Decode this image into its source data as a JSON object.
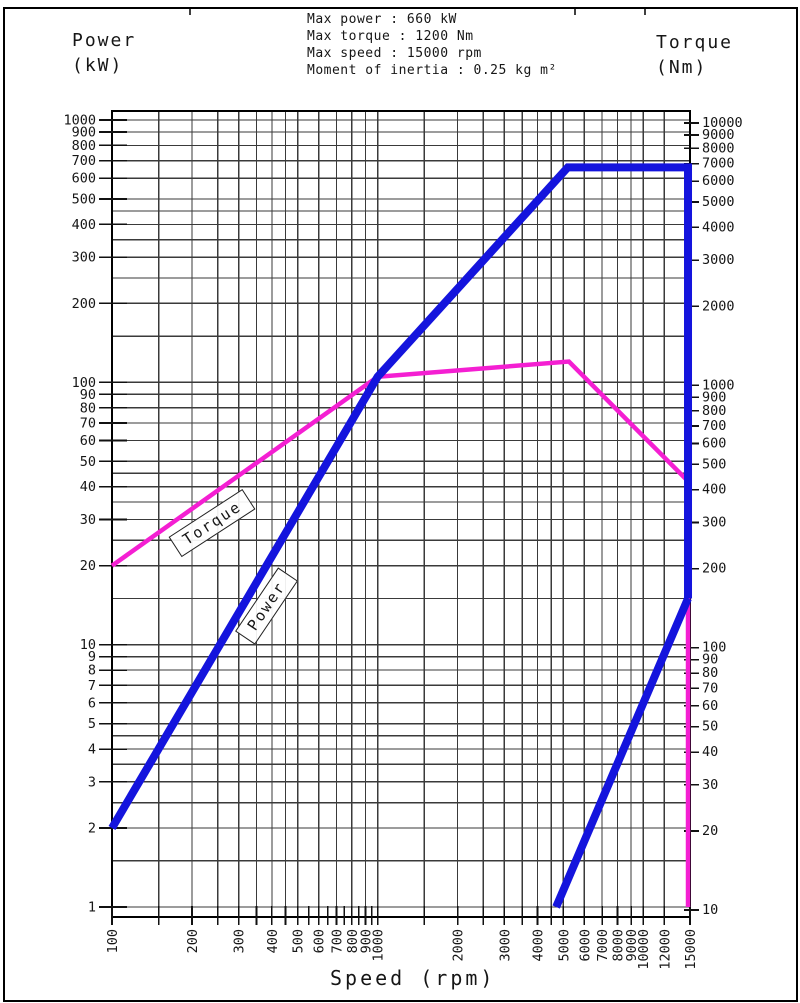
{
  "page": {
    "frame_ticks_x": [
      190,
      575,
      645
    ]
  },
  "header": {
    "left_title": "Power",
    "left_unit": "(kW)",
    "right_title": "Torque",
    "right_unit": "(Nm)",
    "specs": [
      "Max power : 660 kW",
      "Max torque : 1200 Nm",
      "Max speed : 15000 rpm",
      "Moment of inertia : 0.25 kg m²"
    ]
  },
  "labels": {
    "torque_box": "Torque",
    "power_box": "Power",
    "x_axis": "Speed (rpm)"
  },
  "chart_data": {
    "type": "line",
    "title": "Spindle power / torque vs speed",
    "xlabel": "Speed (rpm)",
    "x_scale": "log",
    "y_scale": "log",
    "x_range": [
      100,
      15000
    ],
    "y_left_axis": {
      "label": "Power (kW)",
      "range": [
        1,
        1000
      ]
    },
    "y_right_axis": {
      "label": "Torque (Nm)",
      "range": [
        10,
        10000
      ]
    },
    "grid": "on",
    "x_gridlines": [
      100,
      150,
      200,
      250,
      300,
      350,
      400,
      450,
      500,
      600,
      700,
      800,
      900,
      1000,
      1500,
      2000,
      2500,
      3000,
      3500,
      4000,
      4500,
      5000,
      6000,
      7000,
      8000,
      9000,
      10000,
      12000,
      15000
    ],
    "y_gridlines_left_units": [
      1,
      1.5,
      2,
      2.5,
      3,
      3.5,
      4,
      4.5,
      5,
      6,
      7,
      8,
      9,
      10,
      15,
      20,
      25,
      30,
      35,
      40,
      45,
      50,
      60,
      70,
      80,
      90,
      100,
      150,
      200,
      250,
      300,
      350,
      400,
      450,
      500,
      600,
      700,
      800,
      900,
      1000
    ],
    "x_tick_labels": [
      100,
      200,
      300,
      400,
      500,
      600,
      700,
      800,
      900,
      1000,
      2000,
      3000,
      4000,
      5000,
      6000,
      7000,
      8000,
      9000,
      10000,
      12000,
      15000
    ],
    "x_minor_ticks": [
      550,
      650,
      750,
      850,
      950
    ],
    "y_left_tick_labels": [
      1000,
      900,
      800,
      700,
      600,
      500,
      400,
      300,
      200,
      100,
      90,
      80,
      70,
      60,
      50,
      40,
      30,
      20,
      10,
      9,
      8,
      7,
      6,
      5,
      4,
      3,
      2,
      1
    ],
    "y_right_tick_labels": [
      10000,
      9000,
      8000,
      7000,
      6000,
      5000,
      4000,
      3000,
      2000,
      1000,
      900,
      800,
      700,
      600,
      500,
      400,
      300,
      200,
      100,
      90,
      80,
      70,
      60,
      50,
      40,
      30,
      20,
      10
    ],
    "series": [
      {
        "name": "Power",
        "unit": "kW",
        "axis": "left",
        "color": "#1414dd",
        "stroke_width": 8,
        "segments": [
          [
            [
              100,
              2
            ],
            [
              1000,
              105
            ],
            [
              5200,
              660
            ],
            [
              15000,
              660
            ],
            [
              15000,
              15
            ]
          ],
          [
            [
              4700,
              1
            ],
            [
              15000,
              15
            ]
          ]
        ]
      },
      {
        "name": "Torque",
        "unit": "Nm",
        "axis": "right",
        "color": "#f41fd2",
        "stroke_width": 4.5,
        "segments": [
          [
            [
              100,
              200
            ],
            [
              1000,
              1050
            ],
            [
              5250,
              1200
            ],
            [
              15000,
              420
            ],
            [
              15000,
              10
            ]
          ]
        ]
      }
    ]
  }
}
